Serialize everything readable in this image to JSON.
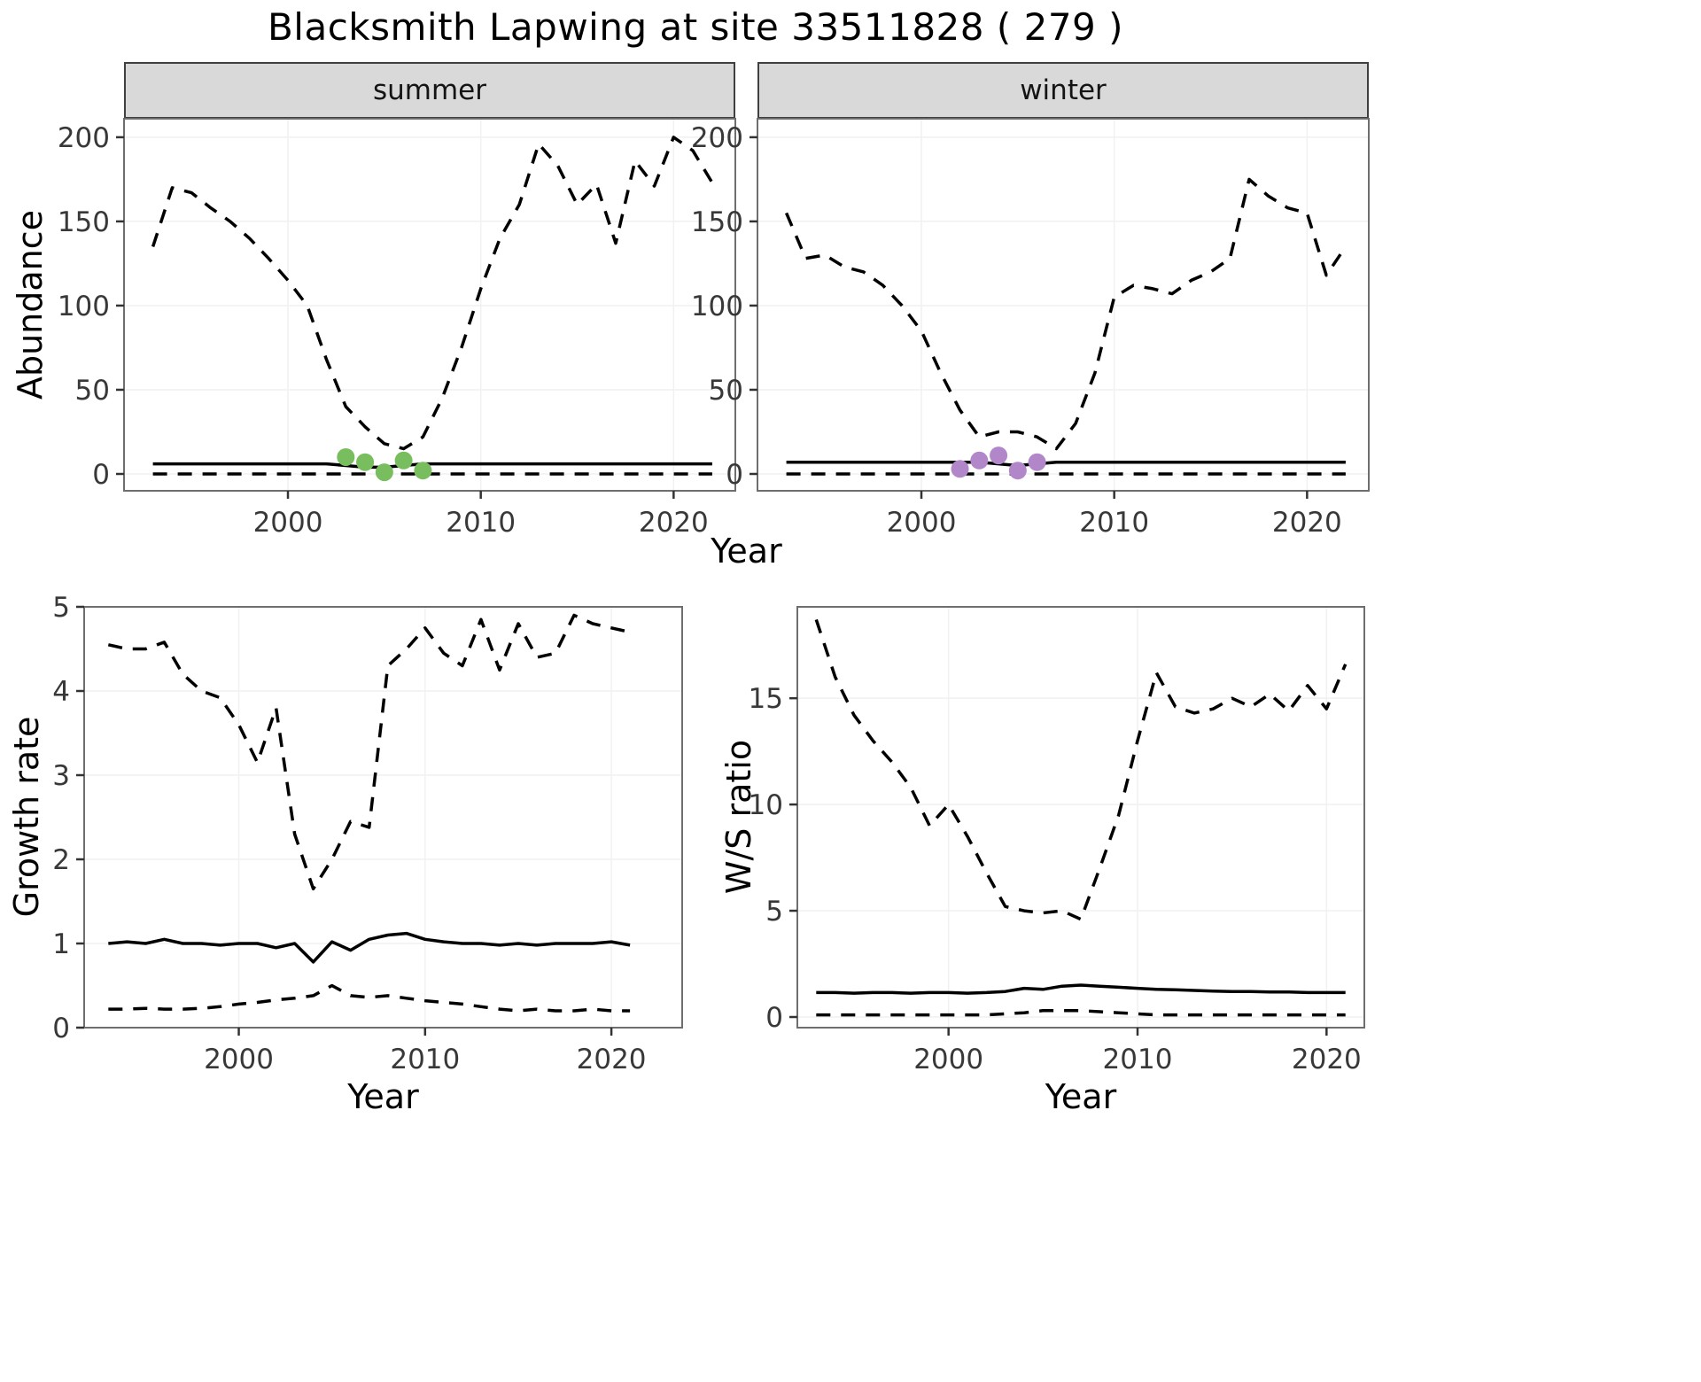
{
  "title": "Blacksmith Lapwing at site 33511828 ( 279 )",
  "facets": {
    "summer": "summer",
    "winter": "winter"
  },
  "axes": {
    "abundance_ylabel": "Abundance",
    "abundance_xlabel": "Year",
    "growth_ylabel": "Growth rate",
    "growth_xlabel": "Year",
    "ws_ylabel": "W/S ratio",
    "ws_xlabel": "Year"
  },
  "colors": {
    "line": "#000000",
    "summer_points": "#78BE5E",
    "winter_points": "#B287C9",
    "strip_bg": "#D9D9D9",
    "panel_border": "#6e6e6e"
  },
  "chart_data": [
    {
      "id": "abundance_summer",
      "type": "line",
      "facet": "summer",
      "xlabel": "Year",
      "ylabel": "Abundance",
      "xlim": [
        1991.5,
        2023.2
      ],
      "ylim": [
        -10,
        211
      ],
      "xticks": [
        2000,
        2010,
        2020
      ],
      "yticks": [
        0,
        50,
        100,
        150,
        200
      ],
      "grid": "none",
      "legend": "none",
      "series": [
        {
          "name": "upper_ci",
          "style": "dashed",
          "x": [
            1993,
            1994,
            1995,
            1996,
            1997,
            1998,
            1999,
            2000,
            2001,
            2002,
            2003,
            2004,
            2005,
            2006,
            2007,
            2008,
            2009,
            2010,
            2011,
            2012,
            2013,
            2014,
            2015,
            2016,
            2017,
            2018,
            2019,
            2020,
            2021,
            2022
          ],
          "y": [
            135,
            170,
            167,
            158,
            150,
            140,
            128,
            115,
            100,
            68,
            40,
            28,
            18,
            15,
            22,
            45,
            75,
            110,
            140,
            160,
            196,
            183,
            160,
            172,
            137,
            186,
            171,
            200,
            192,
            173
          ]
        },
        {
          "name": "lower_ci",
          "style": "dashed",
          "x": [
            1993,
            1994,
            1995,
            1996,
            1997,
            1998,
            1999,
            2000,
            2001,
            2002,
            2003,
            2004,
            2005,
            2006,
            2007,
            2008,
            2009,
            2010,
            2011,
            2012,
            2013,
            2014,
            2015,
            2016,
            2017,
            2018,
            2019,
            2020,
            2021,
            2022
          ],
          "y": [
            0,
            0,
            0,
            0,
            0,
            0,
            0,
            0,
            0,
            0,
            0,
            0,
            0,
            0,
            0,
            0,
            0,
            0,
            0,
            0,
            0,
            0,
            0,
            0,
            0,
            0,
            0,
            0,
            0,
            0
          ]
        },
        {
          "name": "median",
          "style": "solid",
          "x": [
            1993,
            1994,
            1995,
            1996,
            1997,
            1998,
            1999,
            2000,
            2001,
            2002,
            2003,
            2004,
            2005,
            2006,
            2007,
            2008,
            2009,
            2010,
            2011,
            2012,
            2013,
            2014,
            2015,
            2016,
            2017,
            2018,
            2019,
            2020,
            2021,
            2022
          ],
          "y": [
            6,
            6,
            6,
            6,
            6,
            6,
            6,
            6,
            6,
            6,
            5,
            4,
            4,
            5,
            6,
            6,
            6,
            6,
            6,
            6,
            6,
            6,
            6,
            6,
            6,
            6,
            6,
            6,
            6,
            6
          ]
        },
        {
          "name": "observed_counts",
          "style": "points",
          "color": "#78BE5E",
          "x": [
            2003,
            2004,
            2005,
            2006,
            2007
          ],
          "y": [
            10,
            7,
            1,
            8,
            2
          ]
        }
      ]
    },
    {
      "id": "abundance_winter",
      "type": "line",
      "facet": "winter",
      "xlabel": "Year",
      "ylabel": "Abundance",
      "xlim": [
        1991.5,
        2023.2
      ],
      "ylim": [
        -10,
        211
      ],
      "xticks": [
        2000,
        2010,
        2020
      ],
      "yticks": [
        0,
        50,
        100,
        150,
        200
      ],
      "grid": "none",
      "legend": "none",
      "series": [
        {
          "name": "upper_ci",
          "style": "dashed",
          "x": [
            1993,
            1994,
            1995,
            1996,
            1997,
            1998,
            1999,
            2000,
            2001,
            2002,
            2003,
            2004,
            2005,
            2006,
            2007,
            2008,
            2009,
            2010,
            2011,
            2012,
            2013,
            2014,
            2015,
            2016,
            2017,
            2018,
            2019,
            2020,
            2021,
            2022
          ],
          "y": [
            155,
            128,
            130,
            123,
            120,
            112,
            100,
            85,
            60,
            38,
            22,
            25,
            25,
            22,
            15,
            30,
            60,
            105,
            112,
            110,
            107,
            115,
            120,
            128,
            175,
            165,
            158,
            155,
            118,
            135
          ]
        },
        {
          "name": "lower_ci",
          "style": "dashed",
          "x": [
            1993,
            1994,
            1995,
            1996,
            1997,
            1998,
            1999,
            2000,
            2001,
            2002,
            2003,
            2004,
            2005,
            2006,
            2007,
            2008,
            2009,
            2010,
            2011,
            2012,
            2013,
            2014,
            2015,
            2016,
            2017,
            2018,
            2019,
            2020,
            2021,
            2022
          ],
          "y": [
            0,
            0,
            0,
            0,
            0,
            0,
            0,
            0,
            0,
            0,
            0,
            0,
            0,
            0,
            0,
            0,
            0,
            0,
            0,
            0,
            0,
            0,
            0,
            0,
            0,
            0,
            0,
            0,
            0,
            0
          ]
        },
        {
          "name": "median",
          "style": "solid",
          "x": [
            1993,
            1994,
            1995,
            1996,
            1997,
            1998,
            1999,
            2000,
            2001,
            2002,
            2003,
            2004,
            2005,
            2006,
            2007,
            2008,
            2009,
            2010,
            2011,
            2012,
            2013,
            2014,
            2015,
            2016,
            2017,
            2018,
            2019,
            2020,
            2021,
            2022
          ],
          "y": [
            7,
            7,
            7,
            7,
            7,
            7,
            7,
            7,
            7,
            7,
            7,
            6,
            5,
            6,
            7,
            7,
            7,
            7,
            7,
            7,
            7,
            7,
            7,
            7,
            7,
            7,
            7,
            7,
            7,
            7
          ]
        },
        {
          "name": "observed_counts",
          "style": "points",
          "color": "#B287C9",
          "x": [
            2002,
            2003,
            2004,
            2005,
            2006
          ],
          "y": [
            3,
            8,
            11,
            2,
            7
          ]
        }
      ]
    },
    {
      "id": "growth_rate",
      "type": "line",
      "xlabel": "Year",
      "ylabel": "Growth rate",
      "xlim": [
        1991.7,
        2023.8
      ],
      "ylim": [
        0,
        5
      ],
      "xticks": [
        2000,
        2010,
        2020
      ],
      "yticks": [
        0,
        1,
        2,
        3,
        4,
        5
      ],
      "grid": "none",
      "legend": "none",
      "series": [
        {
          "name": "upper_ci",
          "style": "dashed",
          "x": [
            1993,
            1994,
            1995,
            1996,
            1997,
            1998,
            1999,
            2000,
            2001,
            2002,
            2003,
            2004,
            2005,
            2006,
            2007,
            2008,
            2009,
            2010,
            2011,
            2012,
            2013,
            2014,
            2015,
            2016,
            2017,
            2018,
            2019,
            2020,
            2021
          ],
          "y": [
            4.55,
            4.5,
            4.5,
            4.58,
            4.2,
            4.0,
            3.92,
            3.6,
            3.15,
            3.8,
            2.3,
            1.65,
            2.0,
            2.45,
            2.38,
            4.3,
            4.5,
            4.75,
            4.45,
            4.3,
            4.85,
            4.25,
            4.8,
            4.4,
            4.45,
            4.9,
            4.8,
            4.75,
            4.7
          ]
        },
        {
          "name": "lower_ci",
          "style": "dashed",
          "x": [
            1993,
            1994,
            1995,
            1996,
            1997,
            1998,
            1999,
            2000,
            2001,
            2002,
            2003,
            2004,
            2005,
            2006,
            2007,
            2008,
            2009,
            2010,
            2011,
            2012,
            2013,
            2014,
            2015,
            2016,
            2017,
            2018,
            2019,
            2020,
            2021
          ],
          "y": [
            0.22,
            0.22,
            0.23,
            0.22,
            0.22,
            0.23,
            0.25,
            0.28,
            0.3,
            0.33,
            0.35,
            0.38,
            0.5,
            0.38,
            0.36,
            0.38,
            0.35,
            0.32,
            0.3,
            0.28,
            0.25,
            0.22,
            0.2,
            0.22,
            0.2,
            0.2,
            0.22,
            0.2,
            0.2
          ]
        },
        {
          "name": "median",
          "style": "solid",
          "x": [
            1993,
            1994,
            1995,
            1996,
            1997,
            1998,
            1999,
            2000,
            2001,
            2002,
            2003,
            2004,
            2005,
            2006,
            2007,
            2008,
            2009,
            2010,
            2011,
            2012,
            2013,
            2014,
            2015,
            2016,
            2017,
            2018,
            2019,
            2020,
            2021
          ],
          "y": [
            1.0,
            1.02,
            1.0,
            1.05,
            1.0,
            1.0,
            0.98,
            1.0,
            1.0,
            0.95,
            1.0,
            0.78,
            1.02,
            0.92,
            1.05,
            1.1,
            1.12,
            1.05,
            1.02,
            1.0,
            1.0,
            0.98,
            1.0,
            0.98,
            1.0,
            1.0,
            1.0,
            1.02,
            0.98
          ]
        }
      ]
    },
    {
      "id": "ws_ratio",
      "type": "line",
      "xlabel": "Year",
      "ylabel": "W/S ratio",
      "xlim": [
        1992.0,
        2022.0
      ],
      "ylim": [
        -0.5,
        19.3
      ],
      "xticks": [
        2000,
        2010,
        2020
      ],
      "yticks": [
        0,
        5,
        10,
        15
      ],
      "grid": "none",
      "legend": "none",
      "series": [
        {
          "name": "upper_ci",
          "style": "dashed",
          "x": [
            1993,
            1994,
            1995,
            1996,
            1997,
            1998,
            1999,
            2000,
            2001,
            2002,
            2003,
            2004,
            2005,
            2006,
            2007,
            2008,
            2009,
            2010,
            2011,
            2012,
            2013,
            2014,
            2015,
            2016,
            2017,
            2018,
            2019,
            2020,
            2021
          ],
          "y": [
            18.7,
            16.0,
            14.2,
            13.0,
            12.0,
            10.8,
            9.0,
            10.0,
            8.5,
            6.8,
            5.2,
            5.0,
            4.9,
            5.0,
            4.6,
            7.0,
            9.5,
            13.0,
            16.2,
            14.6,
            14.3,
            14.5,
            15.0,
            14.6,
            15.2,
            14.4,
            15.6,
            14.5,
            16.6
          ]
        },
        {
          "name": "lower_ci",
          "style": "dashed",
          "x": [
            1993,
            1994,
            1995,
            1996,
            1997,
            1998,
            1999,
            2000,
            2001,
            2002,
            2003,
            2004,
            2005,
            2006,
            2007,
            2008,
            2009,
            2010,
            2011,
            2012,
            2013,
            2014,
            2015,
            2016,
            2017,
            2018,
            2019,
            2020,
            2021
          ],
          "y": [
            0.1,
            0.1,
            0.1,
            0.1,
            0.1,
            0.1,
            0.1,
            0.1,
            0.1,
            0.1,
            0.15,
            0.2,
            0.3,
            0.3,
            0.3,
            0.25,
            0.2,
            0.15,
            0.1,
            0.1,
            0.1,
            0.1,
            0.1,
            0.1,
            0.1,
            0.1,
            0.1,
            0.1,
            0.1
          ]
        },
        {
          "name": "median",
          "style": "solid",
          "x": [
            1993,
            1994,
            1995,
            1996,
            1997,
            1998,
            1999,
            2000,
            2001,
            2002,
            2003,
            2004,
            2005,
            2006,
            2007,
            2008,
            2009,
            2010,
            2011,
            2012,
            2013,
            2014,
            2015,
            2016,
            2017,
            2018,
            2019,
            2020,
            2021
          ],
          "y": [
            1.15,
            1.15,
            1.12,
            1.15,
            1.15,
            1.12,
            1.15,
            1.15,
            1.12,
            1.15,
            1.2,
            1.35,
            1.3,
            1.45,
            1.5,
            1.45,
            1.4,
            1.35,
            1.3,
            1.28,
            1.25,
            1.22,
            1.2,
            1.2,
            1.18,
            1.18,
            1.15,
            1.15,
            1.15
          ]
        }
      ]
    }
  ]
}
